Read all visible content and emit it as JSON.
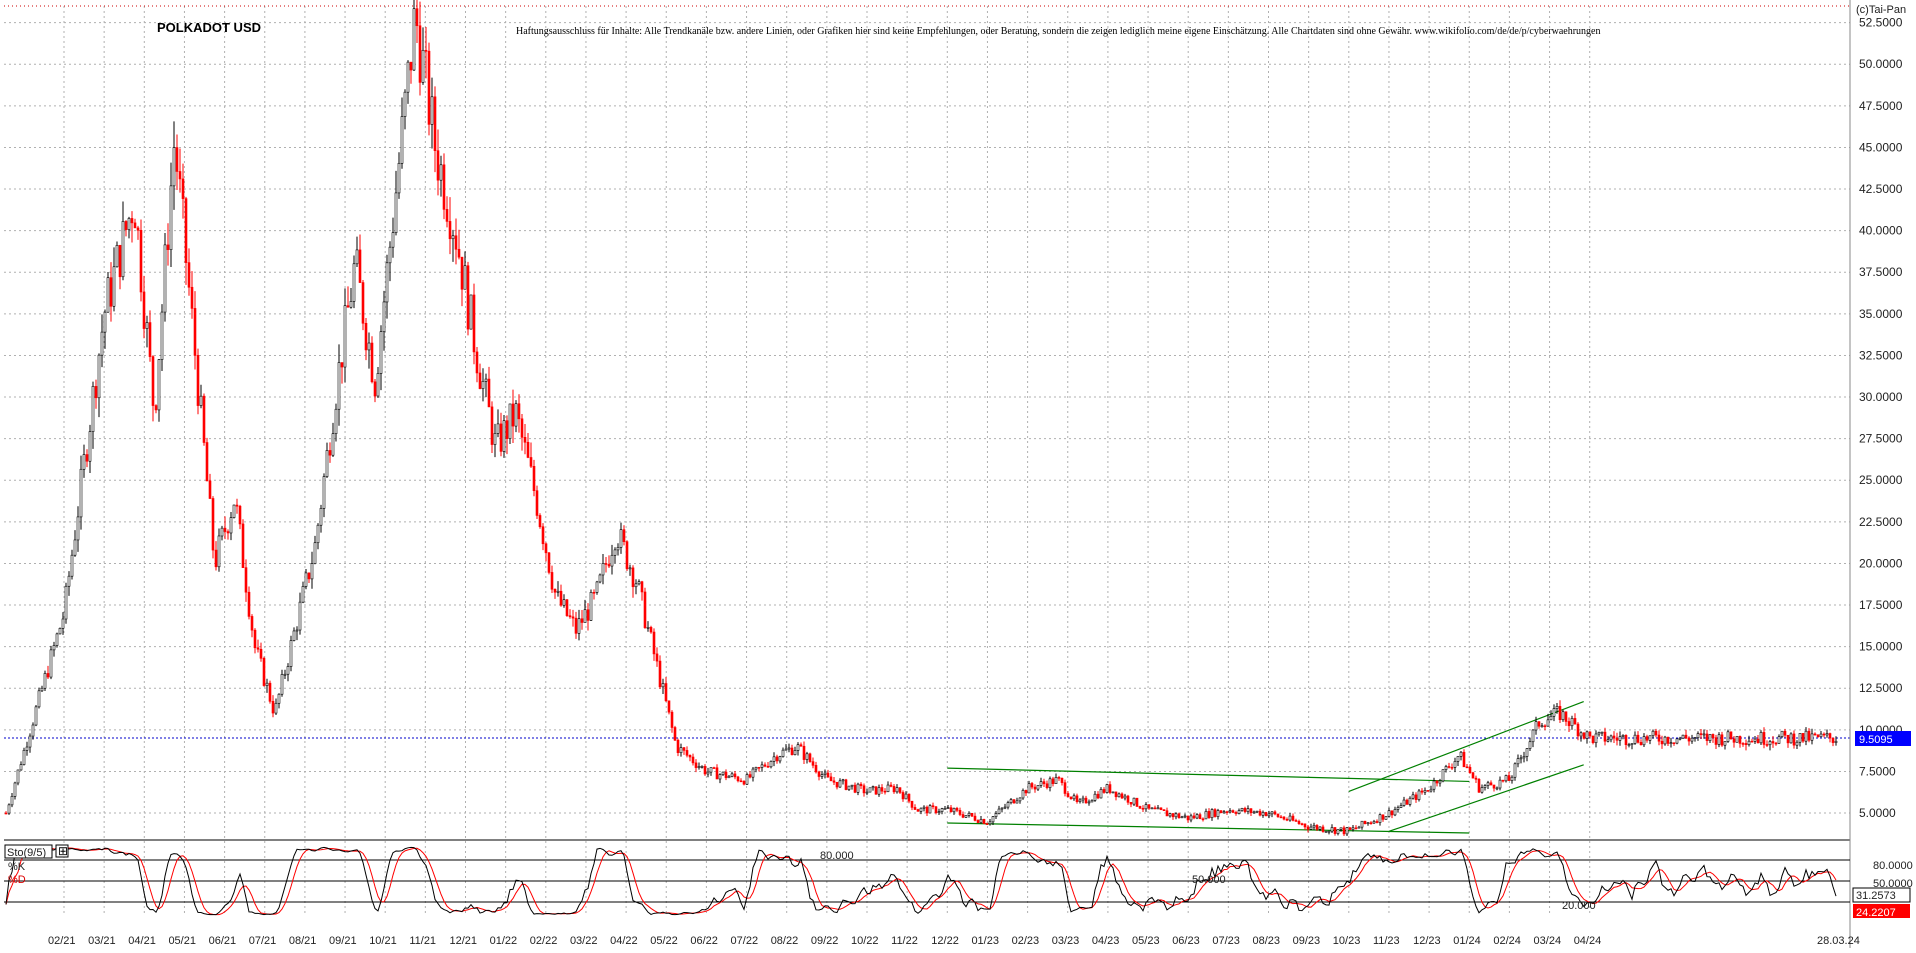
{
  "chart_data": {
    "type": "candlestick",
    "title": "POLKADOT USD",
    "copyright": "(c)Tai-Pan",
    "disclaimer": "Haftungsausschluss für Inhalte: Alle Trendkanäle bzw. andere Linien, oder Grafiken hier sind keine Empfehlungen, oder Beratung, sondern die zeigen lediglich meine eigene Einschätzung. Alle Chartdaten sind ohne Gewähr. www.wikifolio.com/de/de/p/cyberwaehrungen",
    "ylim": [
      3.5,
      53.5
    ],
    "y_ticks": [
      "52.5000",
      "50.0000",
      "47.5000",
      "45.0000",
      "42.5000",
      "40.0000",
      "37.5000",
      "35.0000",
      "32.5000",
      "30.0000",
      "27.5000",
      "25.0000",
      "22.5000",
      "20.0000",
      "17.5000",
      "15.0000",
      "12.5000",
      "10.0000",
      "7.5000",
      "5.0000"
    ],
    "x_ticks": [
      "02/21",
      "03/21",
      "04/21",
      "05/21",
      "06/21",
      "07/21",
      "08/21",
      "09/21",
      "10/21",
      "11/21",
      "12/21",
      "01/22",
      "02/22",
      "03/22",
      "04/22",
      "05/22",
      "06/22",
      "07/22",
      "08/22",
      "09/22",
      "10/22",
      "11/22",
      "12/22",
      "01/23",
      "02/23",
      "03/23",
      "04/23",
      "05/23",
      "06/23",
      "07/23",
      "08/23",
      "09/23",
      "10/23",
      "11/23",
      "12/23",
      "01/24",
      "02/24",
      "03/24",
      "04/24"
    ],
    "date_label": "28.03.24",
    "last_price": "9.5095",
    "price_path": [
      [
        "01/21",
        5.0
      ],
      [
        "02/21",
        17.0
      ],
      [
        "03/21",
        35.0
      ],
      [
        "04/21",
        42.0
      ],
      [
        "04/21",
        29.0
      ],
      [
        "05/21",
        45.5
      ],
      [
        "05/21",
        33.0
      ],
      [
        "06/21",
        20.0
      ],
      [
        "06/21",
        24.0
      ],
      [
        "07/21",
        15.0
      ],
      [
        "07/21",
        11.0
      ],
      [
        "08/21",
        16.0
      ],
      [
        "08/21",
        21.0
      ],
      [
        "09/21",
        30.0
      ],
      [
        "09/21",
        38.0
      ],
      [
        "10/21",
        31.0
      ],
      [
        "10/21",
        42.0
      ],
      [
        "11/21",
        53.0
      ],
      [
        "11/21",
        45.0
      ],
      [
        "12/21",
        40.0
      ],
      [
        "12/21",
        33.0
      ],
      [
        "01/22",
        27.0
      ],
      [
        "01/22",
        29.0
      ],
      [
        "02/22",
        24.0
      ],
      [
        "02/22",
        18.0
      ],
      [
        "03/22",
        16.0
      ],
      [
        "03/22",
        18.0
      ],
      [
        "04/22",
        22.0
      ],
      [
        "04/22",
        19.0
      ],
      [
        "05/22",
        14.0
      ],
      [
        "05/22",
        9.0
      ],
      [
        "06/22",
        7.5
      ],
      [
        "07/22",
        7.0
      ],
      [
        "08/22",
        8.5
      ],
      [
        "08/22",
        9.0
      ],
      [
        "09/22",
        7.0
      ],
      [
        "10/22",
        6.3
      ],
      [
        "11/22",
        6.5
      ],
      [
        "11/22",
        5.2
      ],
      [
        "12/22",
        5.2
      ],
      [
        "01/23",
        4.5
      ],
      [
        "02/23",
        6.5
      ],
      [
        "03/23",
        7.0
      ],
      [
        "03/23",
        5.5
      ],
      [
        "04/23",
        6.5
      ],
      [
        "05/23",
        5.2
      ],
      [
        "06/23",
        4.7
      ],
      [
        "07/23",
        5.2
      ],
      [
        "08/23",
        5.0
      ],
      [
        "09/23",
        4.2
      ],
      [
        "10/23",
        3.9
      ],
      [
        "11/23",
        5.0
      ],
      [
        "12/23",
        6.5
      ],
      [
        "01/24",
        8.5
      ],
      [
        "01/24",
        6.5
      ],
      [
        "02/24",
        7.0
      ],
      [
        "03/24",
        10.5
      ],
      [
        "03/24",
        11.0
      ],
      [
        "04/24",
        9.5
      ]
    ],
    "trendlines": [
      {
        "from": [
          "12/22",
          7.7
        ],
        "to": [
          "01/24",
          6.9
        ]
      },
      {
        "from": [
          "12/22",
          4.4
        ],
        "to": [
          "01/24",
          3.8
        ]
      },
      {
        "from": [
          "10/23",
          6.3
        ],
        "to": [
          "04/24",
          11.7
        ]
      },
      {
        "from": [
          "11/23",
          3.9
        ],
        "to": [
          "04/24",
          7.9
        ]
      }
    ],
    "indicator": {
      "name": "Sto(9/5)",
      "k_label": "%K",
      "d_label": "%D",
      "ylim": [
        0,
        100
      ],
      "levels": [
        {
          "value": 80,
          "label": "80.000"
        },
        {
          "value": 50,
          "label": "50.000"
        },
        {
          "value": 20,
          "label": "20.000"
        }
      ],
      "k_last": "31.2573",
      "d_last": "24.2207"
    },
    "colors": {
      "up": "#000000",
      "down": "#ff0000",
      "trendline": "#008000",
      "last_price_bg": "#0000ff",
      "k_line": "#000000",
      "d_line": "#ff0000",
      "grid": "#b0b0b0"
    }
  }
}
